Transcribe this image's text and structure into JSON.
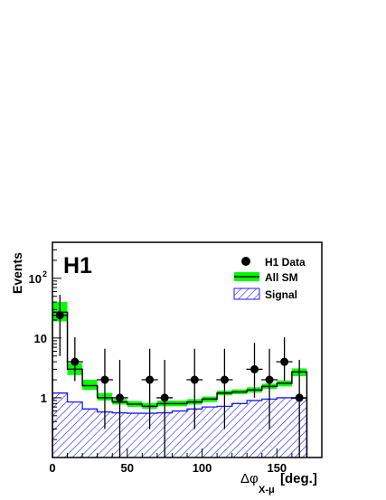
{
  "chart_data": {
    "type": "histogram",
    "experiment_label": "H1",
    "xlabel": {
      "prefix": "Δφ",
      "subscript": "X-μ",
      "unit": "[deg.]"
    },
    "ylabel": "Events",
    "xlim": [
      0,
      180
    ],
    "ylim": [
      0.1,
      400
    ],
    "y_scale": "log",
    "x_ticks": [
      {
        "value": 0,
        "label": "0"
      },
      {
        "value": 50,
        "label": "50"
      },
      {
        "value": 100,
        "label": "100"
      },
      {
        "value": 150,
        "label": "150"
      }
    ],
    "y_ticks": [
      {
        "value": 1,
        "label": "1"
      },
      {
        "value": 10,
        "label": "10"
      },
      {
        "value": 100,
        "label": "10",
        "exponent": "2"
      }
    ],
    "bin_edges": [
      0,
      10,
      20,
      30,
      40,
      50,
      60,
      70,
      80,
      90,
      100,
      110,
      120,
      130,
      140,
      150,
      160,
      170
    ],
    "series": [
      {
        "name": "H1 Data",
        "kind": "points",
        "x": [
          5,
          15,
          35,
          45,
          65,
          75,
          95,
          115,
          135,
          145,
          155,
          165
        ],
        "y": [
          24,
          4,
          2,
          1,
          2,
          1,
          2,
          2,
          3,
          2,
          4,
          1
        ],
        "y_err_low": [
          19,
          2.1,
          1.7,
          1,
          1.7,
          1,
          1.7,
          1.7,
          2,
          1.7,
          2.1,
          1
        ],
        "y_err_high": [
          29,
          6.3,
          4.6,
          3.3,
          4.6,
          3.3,
          4.6,
          4.6,
          5.3,
          4.6,
          6.3,
          3.3
        ],
        "color": "#000000"
      },
      {
        "name": "All SM",
        "kind": "histogram-band",
        "values": [
          27,
          3,
          1.6,
          1.0,
          0.85,
          0.78,
          0.72,
          0.8,
          0.8,
          0.85,
          0.95,
          1.2,
          1.25,
          1.35,
          1.55,
          1.75,
          2.7
        ],
        "band_low": [
          19,
          2.4,
          1.35,
          0.9,
          0.77,
          0.7,
          0.65,
          0.72,
          0.72,
          0.77,
          0.85,
          1.1,
          1.15,
          1.22,
          1.4,
          1.55,
          2.3
        ],
        "band_high": [
          40,
          3.8,
          2.0,
          1.2,
          0.95,
          0.88,
          0.82,
          0.9,
          0.9,
          0.95,
          1.05,
          1.32,
          1.38,
          1.5,
          1.72,
          1.95,
          3.1
        ],
        "color": "#000000",
        "band_color": "#00ff00"
      },
      {
        "name": "Signal",
        "kind": "histogram-hatched",
        "values": [
          1.2,
          0.85,
          0.65,
          0.58,
          0.56,
          0.55,
          0.55,
          0.56,
          0.6,
          0.65,
          0.7,
          0.72,
          0.8,
          0.9,
          0.95,
          1.0,
          0.98
        ],
        "color": "#1a1aff"
      }
    ],
    "legend": [
      {
        "label": "H1 Data",
        "symbol": "marker"
      },
      {
        "label": "All SM",
        "symbol": "band"
      },
      {
        "label": "Signal",
        "symbol": "hatched"
      }
    ],
    "legend_position": "top-right",
    "grid": false
  }
}
